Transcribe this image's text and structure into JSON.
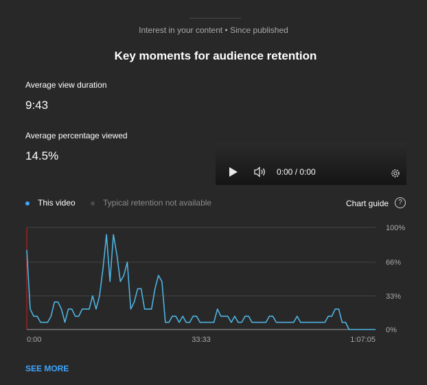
{
  "header": {
    "subtitle": "Interest in your content • Since published",
    "title": "Key moments for audience retention"
  },
  "metrics": {
    "avg_view_duration_label": "Average view duration",
    "avg_view_duration_value": "9:43",
    "avg_pct_viewed_label": "Average percentage viewed",
    "avg_pct_viewed_value": "14.5%"
  },
  "player": {
    "time": "0:00 / 0:00",
    "play_icon": "play-icon",
    "volume_icon": "volume-icon",
    "settings_icon": "gear-icon"
  },
  "legend": {
    "this_video": "This video",
    "typical": "Typical retention not available",
    "this_video_color": "#3ea6ff",
    "typical_color": "#4a4a4a"
  },
  "chart_guide": {
    "label": "Chart guide",
    "icon": "help-icon"
  },
  "chart_data": {
    "type": "line",
    "x_tick_labels": [
      "0:00",
      "33:33",
      "1:07:05"
    ],
    "y_tick_labels": [
      "100%",
      "66%",
      "33%",
      "0%"
    ],
    "ylim": [
      0,
      100
    ],
    "xlim": [
      0,
      4025
    ],
    "grid": true,
    "series": [
      {
        "name": "This video",
        "color": "#4fb4e3",
        "x": [
          0,
          40,
          80,
          120,
          160,
          200,
          240,
          280,
          320,
          360,
          400,
          440,
          480,
          520,
          560,
          600,
          640,
          680,
          720,
          760,
          800,
          840,
          880,
          920,
          960,
          1000,
          1040,
          1080,
          1120,
          1160,
          1200,
          1240,
          1280,
          1320,
          1360,
          1400,
          1440,
          1480,
          1520,
          1560,
          1600,
          1640,
          1680,
          1720,
          1760,
          1800,
          1840,
          1880,
          1920,
          1960,
          2000,
          2040,
          2080,
          2120,
          2160,
          2200,
          2240,
          2280,
          2320,
          2360,
          2400,
          2440,
          2480,
          2520,
          2560,
          2600,
          2640,
          2680,
          2720,
          2760,
          2800,
          2840,
          2880,
          2920,
          2960,
          3000,
          3040,
          3080,
          3120,
          3160,
          3200,
          3240,
          3280,
          3320,
          3360,
          3400,
          3440,
          3480,
          3520,
          3560,
          3600,
          3640,
          3680,
          3720,
          3760,
          3800,
          3840,
          3880,
          3920,
          3960,
          4000,
          4025
        ],
        "y": [
          78,
          20,
          13,
          13,
          7,
          7,
          7,
          13,
          27,
          27,
          20,
          7,
          20,
          20,
          13,
          13,
          20,
          20,
          20,
          33,
          20,
          33,
          60,
          93,
          47,
          93,
          73,
          47,
          53,
          66,
          20,
          27,
          40,
          40,
          20,
          20,
          20,
          40,
          53,
          47,
          7,
          7,
          13,
          13,
          7,
          13,
          7,
          7,
          13,
          13,
          7,
          7,
          7,
          7,
          7,
          20,
          13,
          13,
          13,
          7,
          13,
          7,
          7,
          13,
          13,
          7,
          7,
          7,
          7,
          7,
          13,
          13,
          7,
          7,
          7,
          7,
          7,
          7,
          13,
          7,
          7,
          7,
          7,
          7,
          7,
          7,
          7,
          13,
          13,
          20,
          20,
          7,
          7,
          0,
          0,
          0,
          0,
          0,
          0,
          0,
          0,
          0
        ]
      }
    ]
  },
  "footer": {
    "see_more": "SEE MORE"
  }
}
